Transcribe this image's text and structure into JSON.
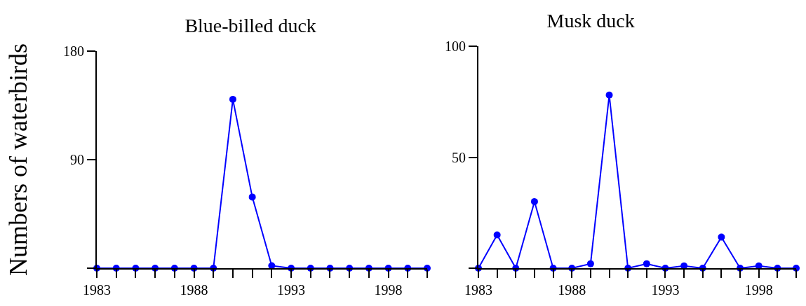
{
  "chart_data": [
    {
      "type": "line",
      "title": "Blue-billed duck",
      "ylabel": "Numbers of waterbirds",
      "x": [
        1983,
        1984,
        1985,
        1986,
        1987,
        1988,
        1989,
        1990,
        1991,
        1992,
        1993,
        1994,
        1995,
        1996,
        1997,
        1998,
        1999,
        2000
      ],
      "series": [
        {
          "color": "#0000ff",
          "values": [
            0,
            0,
            0,
            0,
            0,
            0,
            0,
            140,
            59,
            2,
            0,
            0,
            0,
            0,
            0,
            0,
            0,
            0
          ]
        }
      ],
      "xlim": [
        1983,
        2000
      ],
      "xticks": [
        1983,
        {
          "value": 1984,
          "label": null
        },
        {
          "value": 1985,
          "label": null
        },
        {
          "value": 1986,
          "label": null
        },
        {
          "value": 1987,
          "label": null
        },
        1988,
        {
          "value": 1989,
          "label": null
        },
        {
          "value": 1990,
          "label": null
        },
        {
          "value": 1991,
          "label": null
        },
        {
          "value": 1992,
          "label": null
        },
        1993,
        {
          "value": 1994,
          "label": null
        },
        {
          "value": 1995,
          "label": null
        },
        {
          "value": 1996,
          "label": null
        },
        {
          "value": 1997,
          "label": null
        },
        1998,
        {
          "value": 1999,
          "label": null
        },
        {
          "value": 2000,
          "label": null
        }
      ],
      "ylim": [
        0,
        180
      ],
      "yticks": [
        {
          "value": 0,
          "label": null
        },
        90,
        180
      ],
      "grid": false,
      "marker": "circle",
      "line_style": "solid"
    },
    {
      "type": "line",
      "title": "Musk duck",
      "x": [
        1983,
        1984,
        1985,
        1986,
        1987,
        1988,
        1989,
        1990,
        1991,
        1992,
        1993,
        1994,
        1995,
        1996,
        1997,
        1998,
        1999,
        2000
      ],
      "series": [
        {
          "color": "#0000ff",
          "values": [
            0,
            15,
            0,
            30,
            0,
            0,
            2,
            78,
            0,
            2,
            0,
            1,
            0,
            14,
            0,
            1,
            0,
            0
          ]
        }
      ],
      "xlim": [
        1983,
        2000
      ],
      "xticks": [
        1983,
        {
          "value": 1984,
          "label": null
        },
        {
          "value": 1985,
          "label": null
        },
        {
          "value": 1986,
          "label": null
        },
        {
          "value": 1987,
          "label": null
        },
        1988,
        {
          "value": 1989,
          "label": null
        },
        {
          "value": 1990,
          "label": null
        },
        {
          "value": 1991,
          "label": null
        },
        {
          "value": 1992,
          "label": null
        },
        1993,
        {
          "value": 1994,
          "label": null
        },
        {
          "value": 1995,
          "label": null
        },
        {
          "value": 1996,
          "label": null
        },
        {
          "value": 1997,
          "label": null
        },
        1998,
        {
          "value": 1999,
          "label": null
        },
        {
          "value": 2000,
          "label": null
        }
      ],
      "ylim": [
        0,
        100
      ],
      "yticks": [
        {
          "value": 0,
          "label": null
        },
        50,
        100
      ],
      "grid": false,
      "marker": "circle",
      "line_style": "solid"
    }
  ]
}
